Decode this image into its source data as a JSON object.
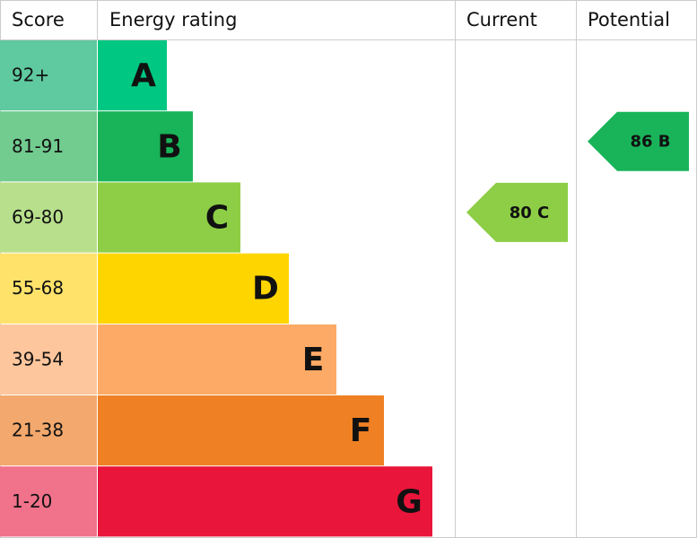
{
  "chart_data": {
    "type": "epc",
    "score_header": "Score",
    "rating_header": "Energy rating",
    "bands": [
      {
        "score": "92+",
        "letter": "A",
        "color": "#00c781",
        "score_color": "#5fc9a0"
      },
      {
        "score": "81-91",
        "letter": "B",
        "color": "#19b459",
        "score_color": "#72cb8f"
      },
      {
        "score": "69-80",
        "letter": "C",
        "color": "#8dce46",
        "score_color": "#b8e08c"
      },
      {
        "score": "55-68",
        "letter": "D",
        "color": "#ffd500",
        "score_color": "#ffe26a"
      },
      {
        "score": "39-54",
        "letter": "E",
        "color": "#fcaa65",
        "score_color": "#fdc69c"
      },
      {
        "score": "21-38",
        "letter": "F",
        "color": "#ef8023",
        "score_color": "#f3a86d"
      },
      {
        "score": "1-20",
        "letter": "G",
        "color": "#e9153b",
        "score_color": "#f0728b"
      }
    ],
    "series": [
      {
        "name": "Current",
        "values": [
          80
        ],
        "value_labels": [
          "80 C"
        ],
        "color": "#8dce46"
      },
      {
        "name": "Potential",
        "values": [
          86
        ],
        "value_labels": [
          "86 B"
        ],
        "color": "#19b459"
      }
    ]
  }
}
